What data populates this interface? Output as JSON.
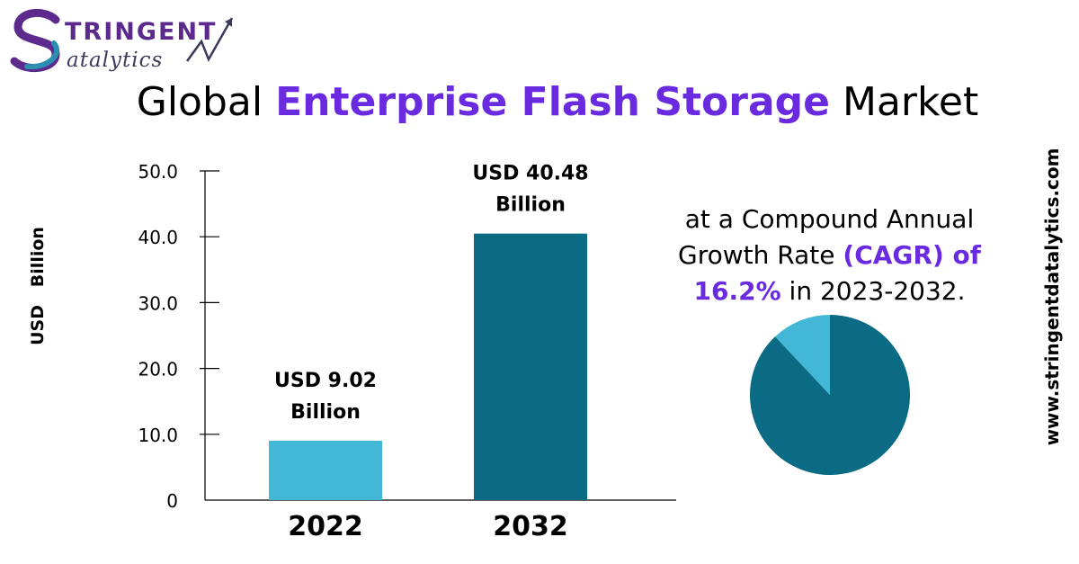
{
  "logo": {
    "line1": "TRINGENT",
    "line2": "atalytics",
    "initial": "S"
  },
  "title": {
    "before": "Global ",
    "highlight": "Enterprise Flash Storage",
    "after": " Market"
  },
  "cagr": {
    "line1": "at a Compound Annual",
    "line2a": "Growth Rate ",
    "line2b": "(CAGR) of",
    "line3a": "16.2%",
    "line3b": " in 2023-2032."
  },
  "website": "www.stringentdatalytics.com",
  "colors": {
    "accent": "#6a2be0",
    "bar_light": "#42b8d6",
    "bar_dark": "#0b6b84",
    "logo_purple": "#5b2a8c"
  },
  "chart_data": [
    {
      "type": "bar",
      "categories": [
        "2022",
        "2032"
      ],
      "values": [
        9.02,
        40.48
      ],
      "data_labels": [
        [
          "USD 9.02",
          "Billion"
        ],
        [
          "USD 40.48",
          "Billion"
        ]
      ],
      "ylabel": "USD   Billion",
      "yticks": [
        "0",
        "10.0",
        "20.0",
        "30.0",
        "40.0",
        "50.0"
      ],
      "ylim": [
        0,
        50
      ],
      "bar_colors": [
        "#42b8d6",
        "#0b6b84"
      ],
      "grid": false
    },
    {
      "type": "pie",
      "values": [
        88,
        12
      ],
      "colors": [
        "#0b6b84",
        "#42b8d6"
      ]
    }
  ]
}
